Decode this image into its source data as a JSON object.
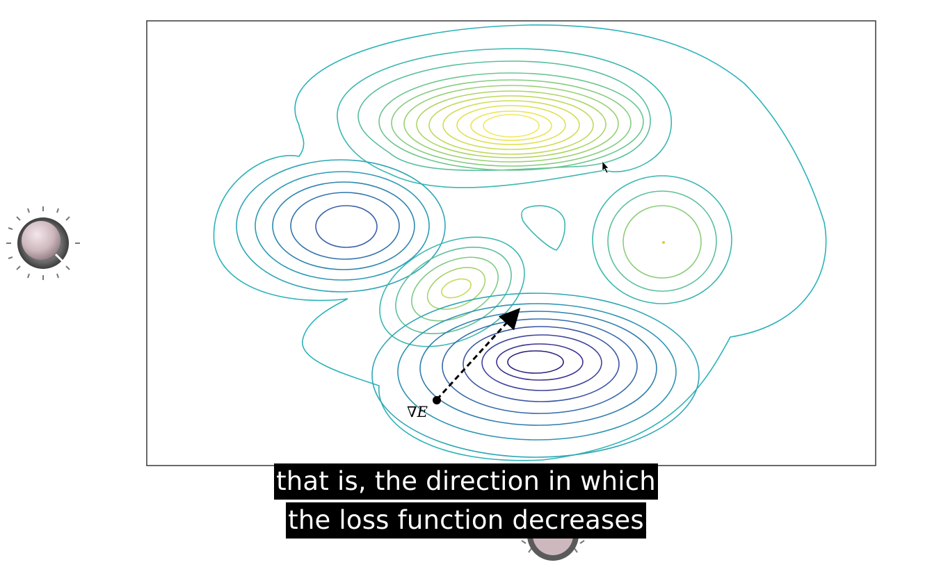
{
  "video": {
    "subtitle_line_1": "that is, the direction in which",
    "subtitle_line_2": "the loss function decreases"
  },
  "plot": {
    "gradient_label": "∇E",
    "frame_color": "#444444"
  },
  "colors": {
    "caption_bg": "#000000",
    "caption_text": "#ffffff",
    "contour_low": "#2c1f7a",
    "contour_mid": "#2ab3b8",
    "contour_high": "#f2e85a"
  },
  "icons": {
    "knob_left": "volume-knob-icon",
    "knob_bottom": "volume-knob-icon",
    "cursor": "mouse-pointer-icon",
    "arrow": "dashed-gradient-arrow"
  }
}
